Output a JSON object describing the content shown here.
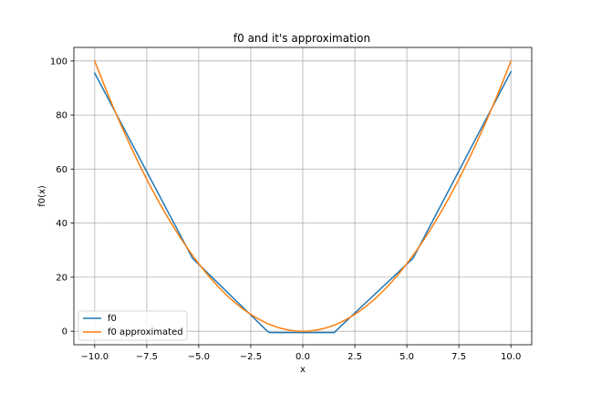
{
  "chart_data": {
    "type": "line",
    "title": "f0 and it's approximation",
    "xlabel": "x",
    "ylabel": "f0(x)",
    "xlim": [
      -11.0,
      11.0
    ],
    "ylim": [
      -5.0,
      105.0
    ],
    "xticks": [
      -10.0,
      -7.5,
      -5.0,
      -2.5,
      0.0,
      2.5,
      5.0,
      7.5,
      10.0
    ],
    "xtick_labels": [
      "−10.0",
      "−7.5",
      "−5.0",
      "−2.5",
      "0.0",
      "2.5",
      "5.0",
      "7.5",
      "10.0"
    ],
    "yticks": [
      0,
      20,
      40,
      60,
      80,
      100
    ],
    "ytick_labels": [
      "0",
      "20",
      "40",
      "60",
      "80",
      "100"
    ],
    "grid": true,
    "legend_position": "lower-left",
    "series": [
      {
        "name": "f0",
        "color": "#1f77b4",
        "x": [
          -10.0,
          -5.3,
          -1.7,
          -1.6,
          1.5,
          5.3,
          10.0
        ],
        "y": [
          95.5,
          27.0,
          0.0,
          -0.5,
          -0.5,
          27.0,
          96.0
        ]
      },
      {
        "name": "f0 approximated",
        "color": "#ff7f0e",
        "function": "x^2",
        "x_range": [
          -10.0,
          10.0
        ]
      }
    ]
  }
}
